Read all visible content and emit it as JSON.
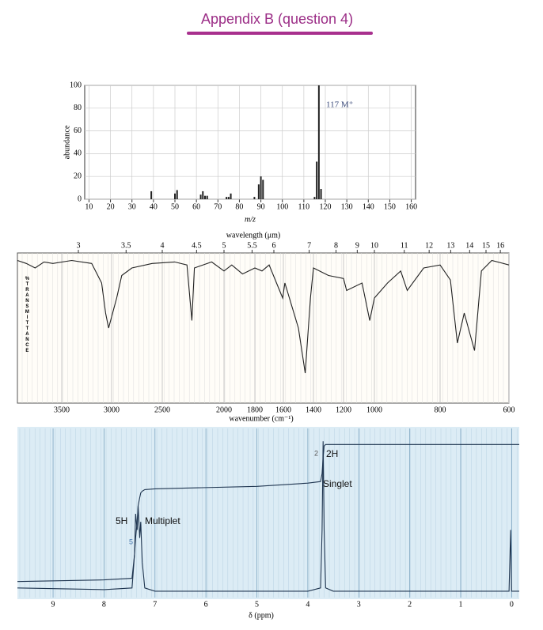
{
  "page_title": "Appendix B (question 4)",
  "chart_data": [
    {
      "type": "bar",
      "xlabel": "m/z",
      "ylabel": "abundance",
      "annotation": "117 M⁺",
      "color": "#222222",
      "x": [
        39,
        50,
        51,
        62,
        63,
        64,
        65,
        74,
        75,
        76,
        87,
        89,
        90,
        91,
        115,
        116,
        117,
        118
      ],
      "values": [
        7,
        5,
        8,
        4,
        7,
        3,
        3,
        2,
        2,
        5,
        2,
        13,
        20,
        17,
        2,
        33,
        100,
        9
      ],
      "xlim": [
        8,
        162
      ],
      "xticks": [
        10,
        20,
        30,
        40,
        50,
        60,
        70,
        80,
        90,
        100,
        110,
        120,
        130,
        140,
        150,
        160
      ],
      "ylim": [
        0,
        100
      ],
      "yticks": [
        0,
        20,
        40,
        60,
        80,
        100
      ],
      "grid": true
    },
    {
      "type": "line",
      "xlabel": "wavenumber (cm⁻¹)",
      "x2label": "wavelength (μm)",
      "ylabel": "%TRANSMITTANCE",
      "color": "#222222",
      "x": [
        4000,
        3900,
        3800,
        3700,
        3600,
        3400,
        3200,
        3100,
        3060,
        3030,
        2950,
        2900,
        2800,
        2600,
        2400,
        2300,
        2260,
        2240,
        2100,
        2000,
        1950,
        1880,
        1800,
        1750,
        1700,
        1605,
        1590,
        1500,
        1455,
        1420,
        1400,
        1300,
        1200,
        1180,
        1080,
        1030,
        1000,
        960,
        920,
        900,
        850,
        800,
        770,
        750,
        730,
        700,
        680,
        650,
        600
      ],
      "values": [
        95,
        93,
        90,
        94,
        93,
        95,
        93,
        80,
        60,
        50,
        70,
        85,
        90,
        93,
        94,
        92,
        55,
        90,
        94,
        88,
        92,
        86,
        90,
        88,
        92,
        70,
        80,
        50,
        20,
        70,
        90,
        85,
        83,
        75,
        80,
        55,
        70,
        80,
        88,
        75,
        90,
        92,
        82,
        40,
        60,
        35,
        88,
        95,
        92
      ],
      "xlim": [
        4000,
        600
      ],
      "xticks": [
        3500,
        3000,
        2500,
        2000,
        1800,
        1600,
        1400,
        1200,
        1000,
        800,
        600
      ],
      "x2ticks": [
        3,
        3.5,
        4,
        4.5,
        5,
        5.5,
        6,
        7,
        8,
        9,
        10,
        11,
        12,
        13,
        14,
        15,
        16
      ],
      "ylim": [
        0,
        100
      ]
    },
    {
      "type": "line",
      "xlabel": "δ (ppm)",
      "color": "#1f3550",
      "annotations": [
        "2",
        "2H",
        "Singlet",
        "5H",
        "Multiplet",
        "5"
      ],
      "x": [
        9.7,
        8,
        7.45,
        7.4,
        7.38,
        7.35,
        7.33,
        7.3,
        7.28,
        7.25,
        7.2,
        7,
        5,
        4,
        3.75,
        3.72,
        3.7,
        3.68,
        3.65,
        3.5,
        1,
        0.05,
        0.02,
        0,
        -0.02,
        -0.15
      ],
      "series": [
        {
          "values": [
            4,
            3,
            4,
            25,
            50,
            40,
            55,
            35,
            45,
            20,
            4,
            2,
            2,
            2,
            4,
            40,
            95,
            40,
            4,
            2,
            2,
            2,
            40,
            2,
            2,
            2
          ]
        },
        {
          "values": [
            8,
            9,
            10,
            25,
            35,
            45,
            55,
            60,
            63,
            64,
            65,
            65.5,
            67,
            69,
            70,
            75,
            85,
            92,
            93,
            93,
            93,
            93,
            93,
            93,
            93,
            93
          ]
        }
      ],
      "xlim": [
        9.7,
        -0.15
      ],
      "xticks": [
        9,
        8,
        7,
        6,
        5,
        4,
        3,
        2,
        1,
        0
      ],
      "ylim": [
        0,
        100
      ]
    }
  ]
}
